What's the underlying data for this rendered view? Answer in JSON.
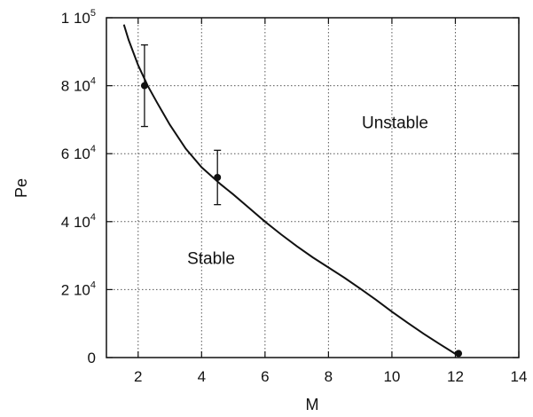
{
  "chart_data": {
    "type": "line",
    "title": "",
    "xlabel": "M",
    "ylabel": "Pe",
    "xlim": [
      1,
      14
    ],
    "ylim": [
      0,
      100000
    ],
    "grid": true,
    "x_ticks": [
      {
        "value": 2,
        "label": "2"
      },
      {
        "value": 4,
        "label": "4"
      },
      {
        "value": 6,
        "label": "6"
      },
      {
        "value": 8,
        "label": "8"
      },
      {
        "value": 10,
        "label": "10"
      },
      {
        "value": 12,
        "label": "12"
      },
      {
        "value": 14,
        "label": "14"
      }
    ],
    "y_ticks": [
      {
        "value": 0,
        "mantissa": "0",
        "exponent": ""
      },
      {
        "value": 20000,
        "mantissa": "2 10",
        "exponent": "4"
      },
      {
        "value": 40000,
        "mantissa": "4 10",
        "exponent": "4"
      },
      {
        "value": 60000,
        "mantissa": "6 10",
        "exponent": "4"
      },
      {
        "value": 80000,
        "mantissa": "8 10",
        "exponent": "4"
      },
      {
        "value": 100000,
        "mantissa": "1 10",
        "exponent": "5"
      }
    ],
    "series": [
      {
        "kind": "curve",
        "x": [
          1.55,
          1.7,
          2.0,
          2.3,
          2.6,
          3.0,
          3.5,
          4.0,
          4.6,
          5.0,
          5.5,
          6.0,
          6.5,
          7.0,
          7.5,
          8.0,
          8.5,
          9.0,
          9.5,
          10.0,
          10.5,
          11.0,
          11.5,
          12.1
        ],
        "y": [
          98000,
          93500,
          86000,
          80000,
          75000,
          68500,
          61500,
          56000,
          51000,
          48000,
          44000,
          40000,
          36300,
          32800,
          29500,
          26500,
          23500,
          20300,
          17000,
          13500,
          10200,
          7000,
          4000,
          500
        ]
      },
      {
        "kind": "points",
        "x": [
          2.2,
          4.5,
          12.1
        ],
        "y": [
          80000,
          53000,
          1200
        ],
        "err_low": [
          68000,
          45000,
          null
        ],
        "err_high": [
          92000,
          61000,
          null
        ]
      }
    ],
    "annotations": [
      {
        "text": "Unstable",
        "x": 10.1,
        "y": 67500
      },
      {
        "text": "Stable",
        "x": 4.3,
        "y": 27500
      }
    ]
  }
}
